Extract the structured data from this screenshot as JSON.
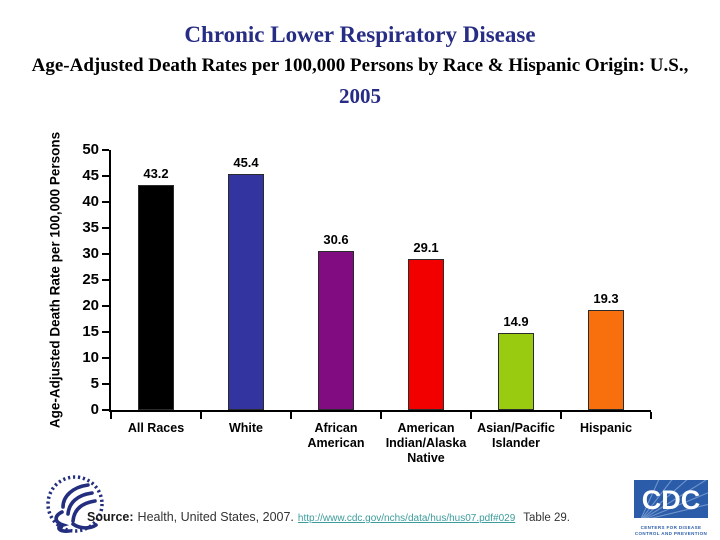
{
  "header": {
    "title_line1": "Chronic Lower Respiratory Disease",
    "title_line2": "Age-Adjusted Death Rates per 100,000 Persons by Race & Hispanic Origin: U.S.,",
    "title_line3": "2005"
  },
  "chart_data": {
    "type": "bar",
    "title": "Chronic Lower Respiratory Disease — Age-Adjusted Death Rates per 100,000 Persons by Race & Hispanic Origin: U.S., 2005",
    "categories": [
      "All Races",
      "White",
      "African American",
      "American Indian/Alaska Native",
      "Asian/Pacific Islander",
      "Hispanic"
    ],
    "categories_display": [
      "All Races",
      "White",
      "African\nAmerican",
      "American\nIndian/Alaska\nNative",
      "Asian/Pacific\nIslander",
      "Hispanic"
    ],
    "values": [
      43.2,
      45.4,
      30.6,
      29.1,
      14.9,
      19.3
    ],
    "value_labels": [
      "43.2",
      "45.4",
      "30.6",
      "29.1",
      "14.9",
      "19.3"
    ],
    "bar_colors": [
      "#000000",
      "#3434a0",
      "#810b81",
      "#f20000",
      "#99cc11",
      "#f8700e"
    ],
    "xlabel": "",
    "ylabel": "Age-Adjusted Death Rate per 100,000 Persons",
    "ylim": [
      0,
      50
    ],
    "ytick_step": 5,
    "grid": false,
    "legend": "none"
  },
  "footer": {
    "source_label": "Source:",
    "source_text": "Health, United States, 2007.",
    "source_link": "http://www.cdc.gov/nchs/data/hus/hus07.pdf#029",
    "source_suffix": "Table 29.",
    "link_color": "#3c9c9c"
  },
  "logos": {
    "cdc_text": "CDC",
    "cdc_caption_line1": "CENTERS FOR DISEASE",
    "cdc_caption_line2": "CONTROL AND PREVENTION",
    "cdc_blue": "#2a5caa",
    "hhs_navy": "#232e7e"
  }
}
